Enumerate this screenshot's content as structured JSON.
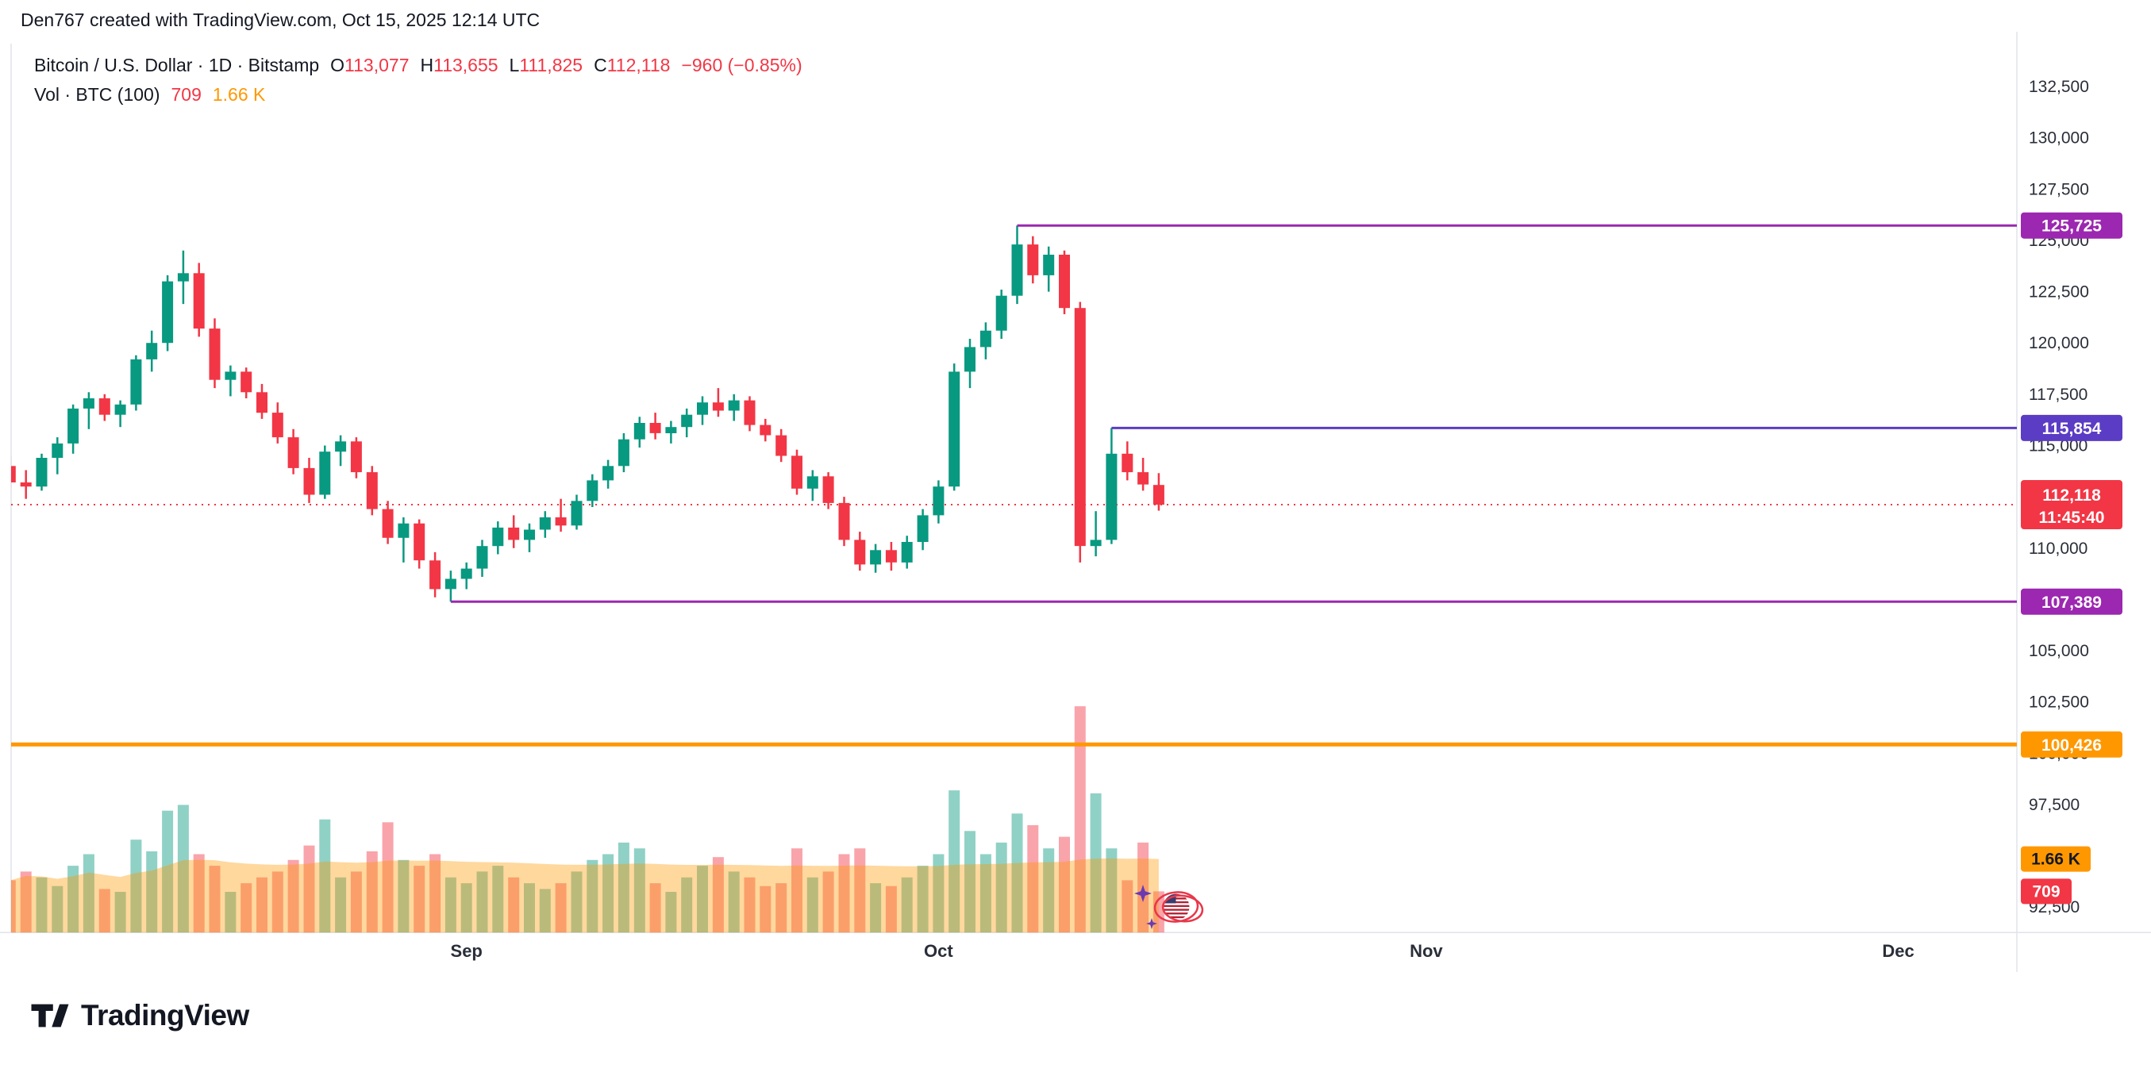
{
  "header": {
    "credit": "Den767 created with TradingView.com, Oct 15, 2025 12:14 UTC"
  },
  "legend": {
    "title": "Bitcoin / U.S. Dollar · 1D · Bitstamp",
    "o_label": "O",
    "o": "113,077",
    "h_label": "H",
    "h": "113,655",
    "l_label": "L",
    "l": "111,825",
    "c_label": "C",
    "c": "112,118",
    "change": "−960 (−0.85%)",
    "vol_title": "Vol · BTC (100)",
    "vol_value": "709",
    "vol_ma_value": "1.66 K"
  },
  "footer": {
    "logo_text": "TradingView"
  },
  "chart_data": {
    "type": "candlestick",
    "title": "Bitcoin / U.S. Dollar · 1D · Bitstamp",
    "x_axis": {
      "months": [
        [
          29,
          "Sep"
        ],
        [
          59,
          "Oct"
        ],
        [
          90,
          "Nov"
        ],
        [
          120,
          "Dec"
        ]
      ]
    },
    "y_axis": {
      "min": 92500,
      "max": 132500,
      "tick_step": 2500,
      "ticks": [
        [
          132500,
          "132,500"
        ],
        [
          130000,
          "130,000"
        ],
        [
          127500,
          "127,500"
        ],
        [
          125000,
          "125,000"
        ],
        [
          122500,
          "122,500"
        ],
        [
          120000,
          "120,000"
        ],
        [
          117500,
          "117,500"
        ],
        [
          115000,
          "115,000"
        ],
        [
          112500,
          "112,500"
        ],
        [
          110000,
          "110,000"
        ],
        [
          107500,
          "107,500"
        ],
        [
          105000,
          "105,000"
        ],
        [
          102500,
          "102,500"
        ],
        [
          100000,
          "100,000"
        ],
        [
          97500,
          "97,500"
        ],
        [
          95000,
          "95,000"
        ],
        [
          92500,
          "92,500"
        ]
      ]
    },
    "candles": [
      [
        114000,
        114500,
        112900,
        113200,
        900
      ],
      [
        113200,
        113800,
        112400,
        113000,
        1050
      ],
      [
        113000,
        114600,
        112800,
        114400,
        950
      ],
      [
        114400,
        115400,
        113600,
        115100,
        800
      ],
      [
        115100,
        117000,
        114600,
        116800,
        1150
      ],
      [
        116800,
        117600,
        115800,
        117300,
        1350
      ],
      [
        117300,
        117500,
        116200,
        116500,
        750
      ],
      [
        116500,
        117200,
        115900,
        117000,
        700
      ],
      [
        117000,
        119400,
        116700,
        119200,
        1600
      ],
      [
        119200,
        120600,
        118600,
        120000,
        1400
      ],
      [
        120000,
        123300,
        119600,
        123000,
        2100
      ],
      [
        123000,
        124500,
        121900,
        123400,
        2200
      ],
      [
        123400,
        123900,
        120300,
        120700,
        1350
      ],
      [
        120700,
        121200,
        117800,
        118200,
        1150
      ],
      [
        118200,
        118900,
        117400,
        118600,
        700
      ],
      [
        118600,
        118800,
        117300,
        117600,
        850
      ],
      [
        117600,
        118000,
        116300,
        116600,
        950
      ],
      [
        116600,
        117100,
        115100,
        115400,
        1050
      ],
      [
        115400,
        115800,
        113600,
        113900,
        1250
      ],
      [
        113900,
        114400,
        112200,
        112600,
        1500
      ],
      [
        112600,
        115000,
        112400,
        114700,
        1950
      ],
      [
        114700,
        115500,
        114000,
        115200,
        950
      ],
      [
        115200,
        115400,
        113400,
        113700,
        1050
      ],
      [
        113700,
        114000,
        111600,
        111900,
        1400
      ],
      [
        111900,
        112300,
        110200,
        110500,
        1900
      ],
      [
        110500,
        111500,
        109300,
        111200,
        1250
      ],
      [
        111200,
        111400,
        109000,
        109400,
        1150
      ],
      [
        109400,
        109800,
        107600,
        108000,
        1350
      ],
      [
        108000,
        108900,
        107389,
        108500,
        950
      ],
      [
        108500,
        109300,
        108000,
        109000,
        850
      ],
      [
        109000,
        110400,
        108600,
        110100,
        1050
      ],
      [
        110100,
        111300,
        109700,
        111000,
        1150
      ],
      [
        111000,
        111600,
        110000,
        110400,
        950
      ],
      [
        110400,
        111200,
        109800,
        110900,
        850
      ],
      [
        110900,
        111800,
        110500,
        111500,
        750
      ],
      [
        111500,
        112400,
        110800,
        111100,
        850
      ],
      [
        111100,
        112600,
        110900,
        112300,
        1050
      ],
      [
        112300,
        113600,
        112000,
        113300,
        1250
      ],
      [
        113300,
        114300,
        112900,
        114000,
        1350
      ],
      [
        114000,
        115600,
        113700,
        115300,
        1550
      ],
      [
        115300,
        116400,
        114900,
        116100,
        1450
      ],
      [
        116100,
        116600,
        115300,
        115600,
        850
      ],
      [
        115600,
        116200,
        115100,
        115900,
        700
      ],
      [
        115900,
        116800,
        115400,
        116500,
        950
      ],
      [
        116500,
        117400,
        116000,
        117100,
        1150
      ],
      [
        117100,
        117800,
        116400,
        116700,
        1300
      ],
      [
        116700,
        117500,
        116200,
        117200,
        1050
      ],
      [
        117200,
        117400,
        115700,
        116000,
        950
      ],
      [
        116000,
        116300,
        115200,
        115500,
        800
      ],
      [
        115500,
        115800,
        114200,
        114500,
        850
      ],
      [
        114500,
        114800,
        112600,
        112900,
        1450
      ],
      [
        112900,
        113800,
        112300,
        113500,
        950
      ],
      [
        113500,
        113700,
        111900,
        112200,
        1050
      ],
      [
        112200,
        112500,
        110100,
        110400,
        1350
      ],
      [
        110400,
        110800,
        108900,
        109200,
        1450
      ],
      [
        109200,
        110200,
        108800,
        109900,
        850
      ],
      [
        109900,
        110300,
        108900,
        109300,
        800
      ],
      [
        109300,
        110600,
        109000,
        110300,
        950
      ],
      [
        110300,
        111900,
        109900,
        111600,
        1150
      ],
      [
        111600,
        113300,
        111200,
        113000,
        1350
      ],
      [
        113000,
        119000,
        112800,
        118600,
        2450
      ],
      [
        118600,
        120200,
        117800,
        119800,
        1750
      ],
      [
        119800,
        121000,
        119200,
        120600,
        1350
      ],
      [
        120600,
        122600,
        120200,
        122300,
        1550
      ],
      [
        122300,
        125725,
        121900,
        124800,
        2050
      ],
      [
        124800,
        125200,
        122900,
        123300,
        1850
      ],
      [
        123300,
        124700,
        122500,
        124300,
        1450
      ],
      [
        124300,
        124500,
        121400,
        121700,
        1650
      ],
      [
        121700,
        122000,
        109300,
        110100,
        3900
      ],
      [
        110100,
        111800,
        109600,
        110400,
        2400
      ],
      [
        110400,
        115854,
        110200,
        114600,
        1450
      ],
      [
        114600,
        115200,
        113300,
        113700,
        900
      ],
      [
        113700,
        114400,
        112800,
        113100,
        1550
      ],
      [
        113077,
        113655,
        111825,
        112118,
        709
      ]
    ],
    "levels": [
      {
        "price": 125725,
        "label": "125,725",
        "color": "#9c27b0",
        "start_index": 64,
        "extend_left": false,
        "width": 3
      },
      {
        "price": 115854,
        "label": "115,854",
        "color": "#5b3cc4",
        "start_index": 70,
        "extend_left": false,
        "width": 3
      },
      {
        "price": 107389,
        "label": "107,389",
        "color": "#9c27b0",
        "start_index": 28,
        "extend_left": false,
        "width": 3
      },
      {
        "price": 100426,
        "label": "100,426",
        "color": "#ff9800",
        "start_index": 0,
        "extend_left": true,
        "width": 5
      }
    ],
    "current_price": {
      "price": 112118,
      "label": "112,118",
      "countdown": "11:45:40"
    },
    "volume": {
      "unit": "BTC",
      "ma_period": 100,
      "current": {
        "value": 709,
        "label": "709"
      },
      "ma": {
        "label": "1.66 K"
      }
    },
    "colors": {
      "up": "#089981",
      "down": "#f23645",
      "volume_up": "rgba(8,153,129,0.45)",
      "volume_down": "rgba(242,54,69,0.45)",
      "volume_ma_fill": "rgba(255,152,0,0.38)",
      "ma_badge": "#ff9800",
      "current_badge": "#f23645",
      "level_purple": "#9c27b0",
      "level_indigo": "#5b3cc4",
      "accent_orange": "#ff9800"
    },
    "sticker": {
      "name": "us-flag-sparkles",
      "circle_color": "#e8374a",
      "sparkle_color": "#6a3ab2"
    }
  }
}
